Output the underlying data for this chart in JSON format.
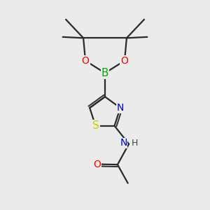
{
  "bg_color": "#ebebeb",
  "bond_color": "#2a2a2a",
  "bond_width": 1.6,
  "atom_colors": {
    "B": "#00aa00",
    "O": "#ff0000",
    "N": "#0000cc",
    "S": "#cccc00",
    "C": "#2a2a2a",
    "H": "#444444"
  },
  "font_size_atoms": 10,
  "font_size_small": 8.5
}
